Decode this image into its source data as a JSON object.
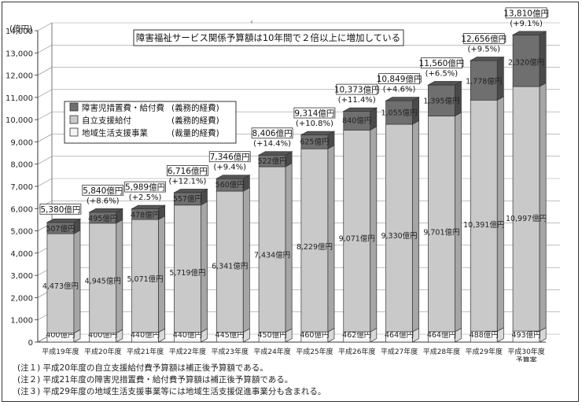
{
  "chart_data": {
    "type": "bar",
    "stacked": true,
    "title": "障害福祉サービス関係予算額は10年間で２倍以上に増加している",
    "ylabel": "(億円)",
    "ylim": [
      0,
      14000
    ],
    "yticks": [
      0,
      1000,
      2000,
      3000,
      4000,
      5000,
      6000,
      7000,
      8000,
      9000,
      10000,
      11000,
      12000,
      13000,
      14000
    ],
    "ytick_labels": [
      "0",
      "1,000",
      "2,000",
      "3,000",
      "4,000",
      "5,000",
      "6,000",
      "7,000",
      "8,000",
      "9,000",
      "10,000",
      "11,000",
      "12,000",
      "13,000",
      "14,000"
    ],
    "grid": true,
    "legend_position": "upper-left",
    "categories": [
      "平成19年度",
      "平成20年度",
      "平成21年度",
      "平成22年度",
      "平成23年度",
      "平成24年度",
      "平成25年度",
      "平成26年度",
      "平成27年度",
      "平成28年度",
      "平成29年度",
      "平成30年度"
    ],
    "category_sublabels": [
      "",
      "",
      "",
      "",
      "",
      "",
      "",
      "",
      "",
      "",
      "",
      "予算案"
    ],
    "series": [
      {
        "name": "地域生活支援事業",
        "note": "(裁量的経費)",
        "color": "#f4f4f4",
        "values": [
          400,
          400,
          440,
          440,
          445,
          450,
          460,
          462,
          464,
          464,
          488,
          493
        ],
        "labels": [
          "400億円",
          "400億円",
          "440億円",
          "440億円",
          "445億円",
          "450億円",
          "460億円",
          "462億円",
          "464億円",
          "464億円",
          "488億円",
          "493億円"
        ]
      },
      {
        "name": "自立支援給付",
        "note": "(義務的経費)",
        "color": "#c9c9c9",
        "values": [
          4473,
          4945,
          5071,
          5719,
          6341,
          7434,
          8229,
          9071,
          9330,
          9701,
          10391,
          10997
        ],
        "labels": [
          "4,473億円",
          "4,945億円",
          "5,071億円",
          "5,719億円",
          "6,341億円",
          "7,434億円",
          "8,229億円",
          "9,071億円",
          "9,330億円",
          "9,701億円",
          "10,391億円",
          "10,997億円"
        ]
      },
      {
        "name": "障害児措置費・給付費",
        "note": "(義務的経費)",
        "color": "#6f6f6f",
        "values": [
          507,
          495,
          478,
          557,
          560,
          522,
          625,
          840,
          1055,
          1395,
          1778,
          2320
        ],
        "labels": [
          "507億円",
          "495億円",
          "478億円",
          "557億円",
          "560億円",
          "522億円",
          "625億円",
          "840億円",
          "1,055億円",
          "1,395億円",
          "1,778億円",
          "2,320億円"
        ]
      }
    ],
    "totals": [
      5380,
      5840,
      5989,
      6716,
      7346,
      8406,
      9314,
      10373,
      10849,
      11560,
      12656,
      13810
    ],
    "total_labels": [
      "5,380億円",
      "5,840億円",
      "5,989億円",
      "6,716億円",
      "7,346億円",
      "8,406億円",
      "9,314億円",
      "10,373億円",
      "10,849億円",
      "11,560億円",
      "12,656億円",
      "13,810億円"
    ],
    "growth_labels": [
      "",
      "(+8.6%)",
      "(+2.5%)",
      "(+12.1%)",
      "(+9.4%)",
      "(+14.4%)",
      "(+10.8%)",
      "(+11.4%)",
      "(+4.6%)",
      "(+6.5%)",
      "(+9.5%)",
      "(+9.1%)"
    ]
  },
  "notes": [
    "(注１) 平成20年度の自立支援給付費予算額は補正後予算額である。",
    "(注２) 平成21年度の障害児措置費・給付費予算額は補正後予算額である。",
    "(注３) 平成29年度の地域生活支援事業等には地域生活支援促進事業分も含まれる。"
  ],
  "stray_mark": "ｨ"
}
